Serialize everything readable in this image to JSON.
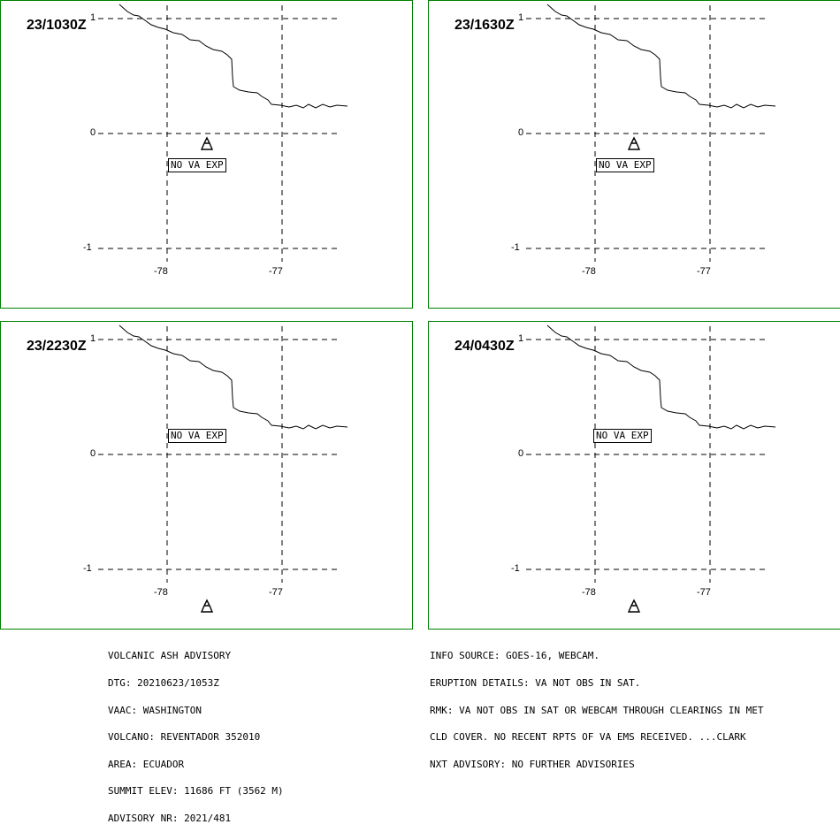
{
  "panels": [
    {
      "time": "23/1030Z",
      "label": "NO VA EXP"
    },
    {
      "time": "23/1630Z",
      "label": "NO VA EXP"
    },
    {
      "time": "23/2230Z",
      "label": "NO VA EXP"
    },
    {
      "time": "24/0430Z",
      "label": "NO VA EXP"
    }
  ],
  "axes": {
    "lat_ticks": [
      "1",
      "0",
      "-1"
    ],
    "lon_ticks": [
      "-78",
      "-77"
    ]
  },
  "advisory_left": [
    "VOLCANIC ASH ADVISORY",
    "DTG: 20210623/1053Z",
    "VAAC: WASHINGTON",
    "VOLCANO: REVENTADOR 352010",
    "AREA: ECUADOR",
    "SUMMIT ELEV: 11686 FT (3562 M)",
    "ADVISORY NR: 2021/481"
  ],
  "advisory_right": [
    "INFO SOURCE: GOES-16, WEBCAM.",
    "ERUPTION DETAILS: VA NOT OBS IN SAT.",
    "RMK: VA NOT OBS IN SAT OR WEBCAM THROUGH CLEARINGS IN MET",
    "CLD COVER. NO RECENT RPTS OF VA EMS RECEIVED. ...CLARK",
    "NXT ADVISORY: NO FURTHER ADVISORIES"
  ],
  "colors": {
    "panel_border": "#008000",
    "lines": "#000000"
  },
  "icons": {
    "volcano": "volcano-icon"
  }
}
